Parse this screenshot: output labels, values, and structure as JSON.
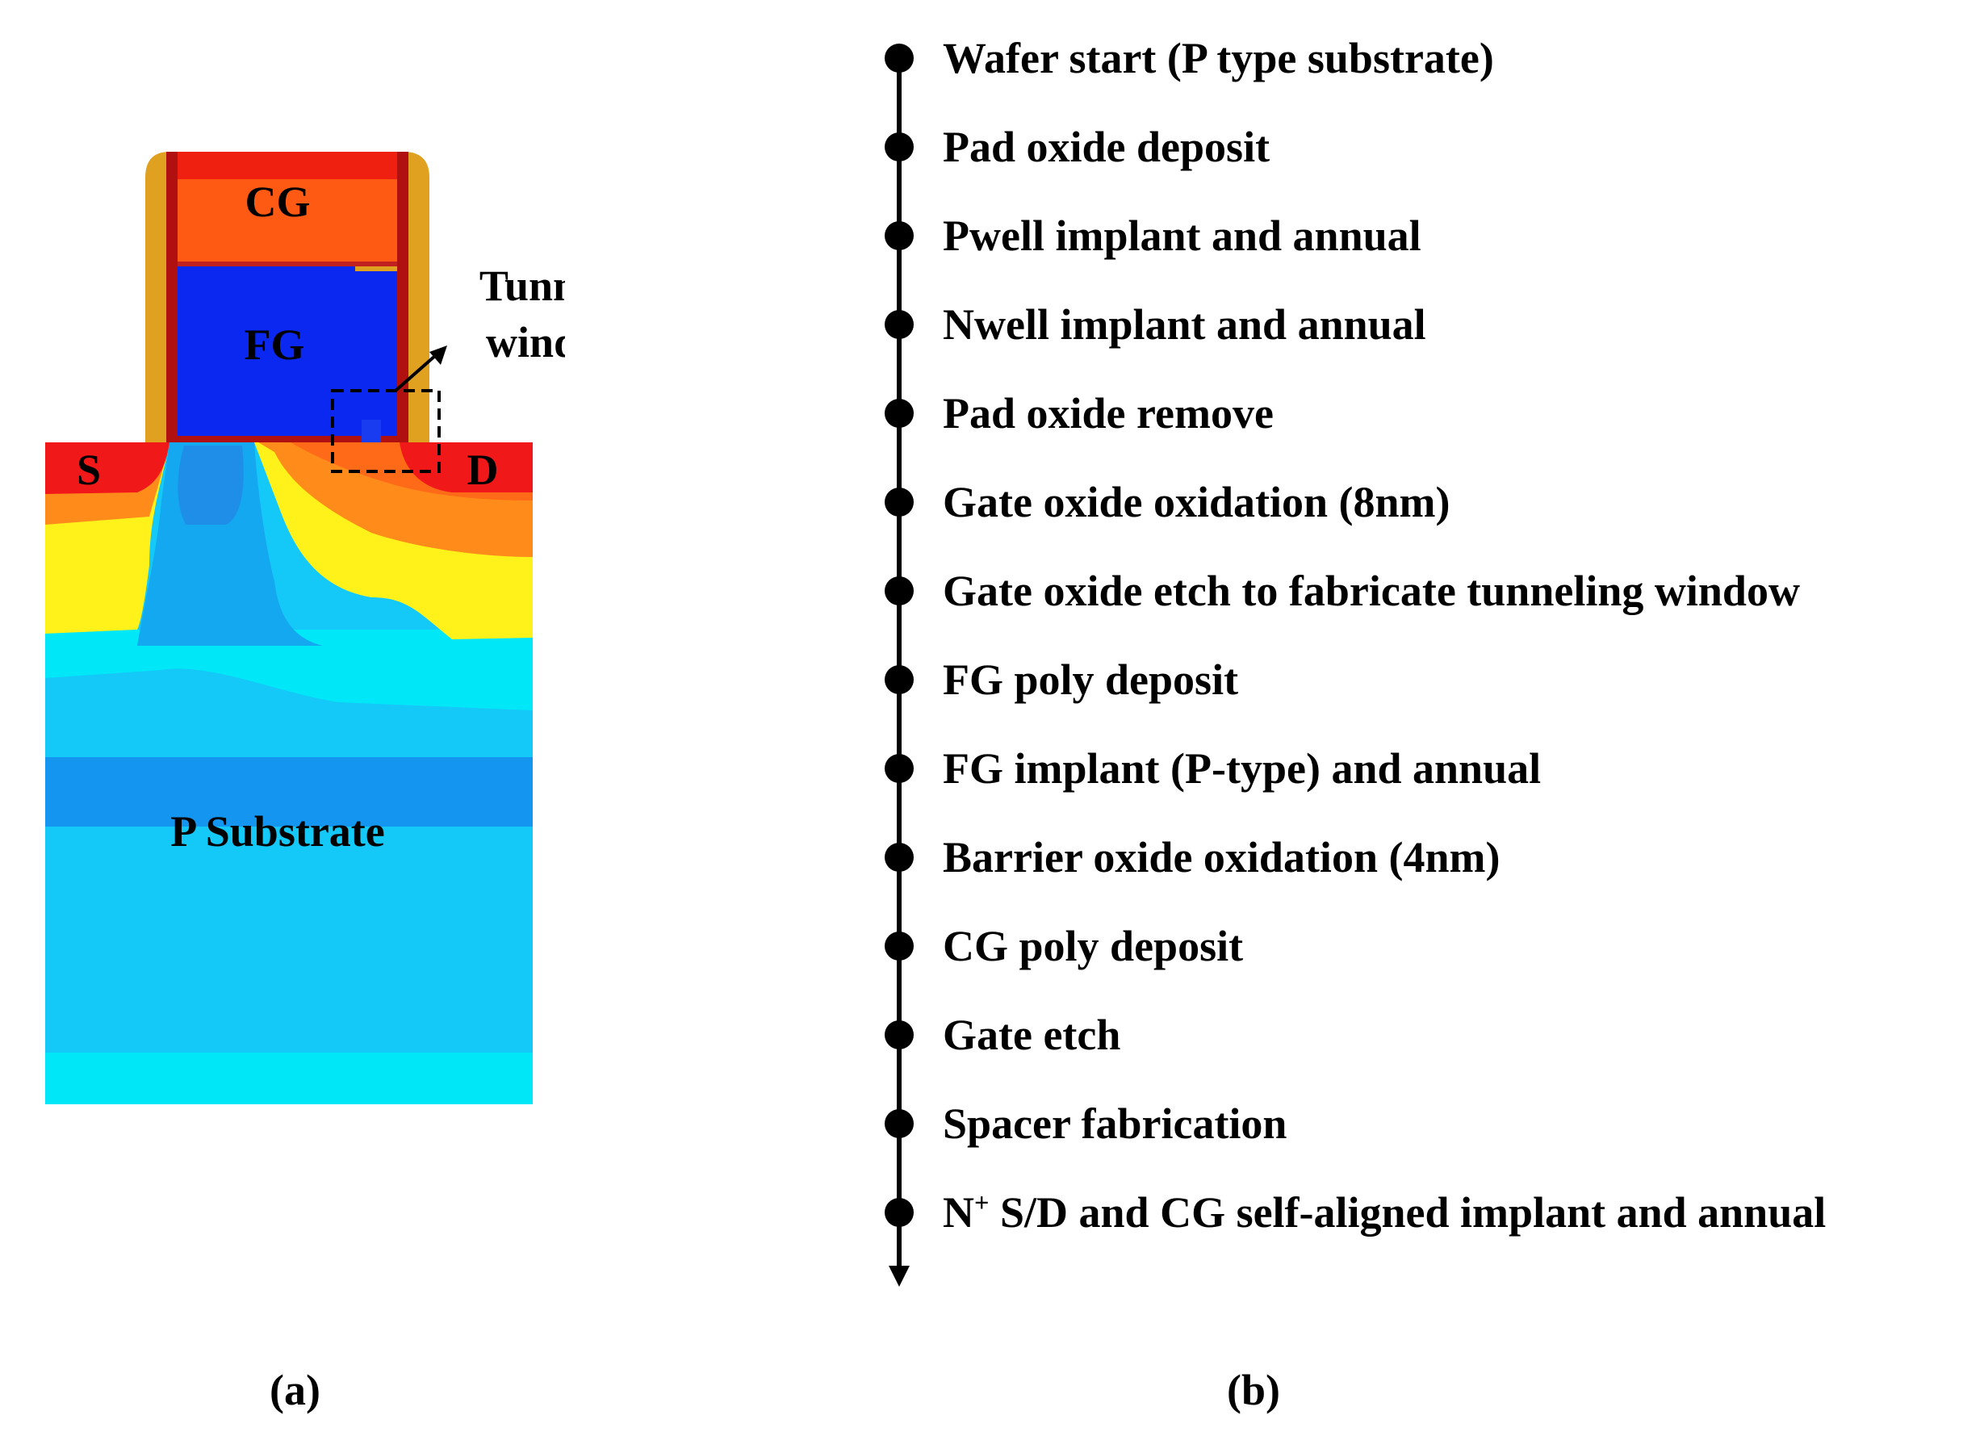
{
  "panel_a": {
    "labels": {
      "cg": "CG",
      "fg": "FG",
      "source": "S",
      "drain": "D",
      "substrate": "P Substrate",
      "tunneling_line1": "Tunneling",
      "tunneling_line2": "window"
    },
    "caption": "(a)"
  },
  "panel_b": {
    "steps": [
      "Wafer start (P type substrate)",
      "Pad oxide deposit",
      "Pwell implant and annual",
      "Nwell implant and annual",
      "Pad oxide remove",
      "Gate oxide oxidation (8nm)",
      "Gate oxide etch to fabricate tunneling window",
      "FG poly deposit",
      "FG implant (P-type) and annual",
      "Barrier oxide oxidation (4nm)",
      "CG poly deposit",
      "Gate etch",
      "Spacer fabrication"
    ],
    "last_step": {
      "prefix": "N",
      "superscript": "+",
      "suffix": " S/D and CG self-aligned implant and annual"
    },
    "caption": "(b)"
  },
  "colors": {
    "spacer": "#E0A020",
    "gate_oxide_edge": "#B01010",
    "cg": "#FF5A14",
    "cg_top": "#F02010",
    "fg": "#0A28F0",
    "junction_red": "#F01818",
    "orange": "#FF8C1A",
    "yellow": "#FFF21A",
    "cyan": "#00E8F8",
    "light_blue": "#14C8F8",
    "mid_blue": "#1496F0"
  }
}
